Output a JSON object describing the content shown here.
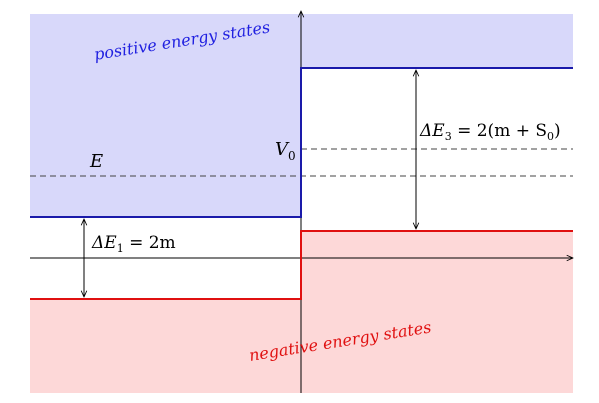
{
  "labels": {
    "positive_states": "positive energy states",
    "negative_states": "negative energy states",
    "energy": "E",
    "potential_symbol": "V",
    "potential_sub": "0",
    "delta_e1_lhs": "ΔE",
    "delta_e1_sub": "1",
    "delta_e1_rhs": " = 2m",
    "delta_e3_lhs": "ΔE",
    "delta_e3_sub": "3",
    "delta_e3_rhs_a": " = 2(m + S",
    "delta_e3_rhs_sub": "0",
    "delta_e3_rhs_b": ")"
  },
  "colors": {
    "positive_fill": "#d8d8fa",
    "positive_line": "#1a1aaa",
    "positive_text": "#2020e0",
    "negative_fill": "#fdd8d8",
    "negative_line": "#e01010",
    "negative_text": "#e01010",
    "axis": "#000000",
    "dashed": "#444444"
  }
}
